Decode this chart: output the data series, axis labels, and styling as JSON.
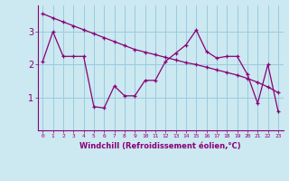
{
  "xlabel": "Windchill (Refroidissement éolien,°C)",
  "xlim": [
    -0.5,
    23.5
  ],
  "ylim": [
    0.0,
    3.8
  ],
  "yticks": [
    1,
    2,
    3
  ],
  "xticks": [
    0,
    1,
    2,
    3,
    4,
    5,
    6,
    7,
    8,
    9,
    10,
    11,
    12,
    13,
    14,
    15,
    16,
    17,
    18,
    19,
    20,
    21,
    22,
    23
  ],
  "bg_color": "#cce8f0",
  "line_color": "#880077",
  "grid_color": "#99cce0",
  "series1_x": [
    0,
    1,
    2,
    3,
    4,
    5,
    6,
    7,
    8,
    9,
    10,
    11,
    12,
    13,
    14,
    15,
    16,
    17,
    18,
    19,
    20,
    21,
    22,
    23
  ],
  "series1_y": [
    3.55,
    3.42,
    3.3,
    3.18,
    3.06,
    2.94,
    2.82,
    2.7,
    2.58,
    2.46,
    2.38,
    2.3,
    2.22,
    2.14,
    2.06,
    2.0,
    1.92,
    1.84,
    1.76,
    1.68,
    1.58,
    1.46,
    1.32,
    1.15
  ],
  "series2_x": [
    0,
    1,
    2,
    3,
    4,
    5,
    6,
    7,
    8,
    9,
    10,
    11,
    12,
    13,
    14,
    15,
    16,
    17,
    18,
    19,
    20,
    21,
    22,
    23
  ],
  "series2_y": [
    2.1,
    3.0,
    2.25,
    2.25,
    2.25,
    0.72,
    0.68,
    1.35,
    1.05,
    1.05,
    1.52,
    1.52,
    2.1,
    2.35,
    2.6,
    3.05,
    2.4,
    2.2,
    2.25,
    2.25,
    1.7,
    0.82,
    2.0,
    0.58
  ]
}
